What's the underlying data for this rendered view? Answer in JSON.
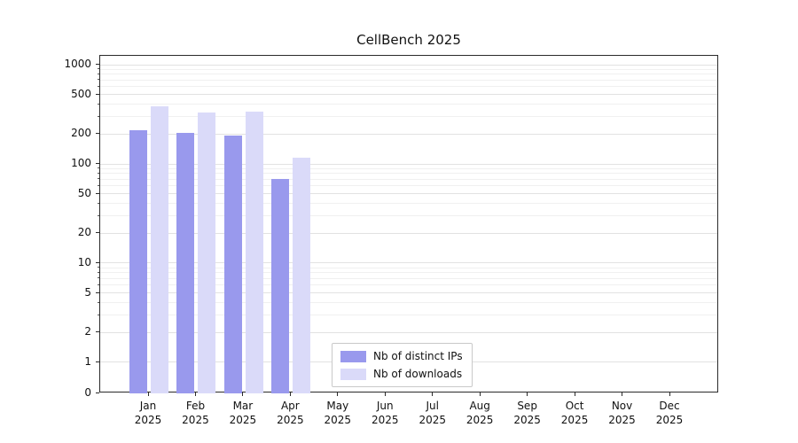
{
  "chart_data": {
    "type": "bar",
    "title": "CellBench 2025",
    "categories": [
      "Jan 2025",
      "Feb 2025",
      "Mar 2025",
      "Apr 2025",
      "May 2025",
      "Jun 2025",
      "Jul 2025",
      "Aug 2025",
      "Sep 2025",
      "Oct 2025",
      "Nov 2025",
      "Dec 2025"
    ],
    "series": [
      {
        "name": "Nb of distinct IPs",
        "color": "#9999ed",
        "values": [
          220,
          205,
          195,
          70,
          0,
          0,
          0,
          0,
          0,
          0,
          0,
          0
        ]
      },
      {
        "name": "Nb of downloads",
        "color": "#dadaf9",
        "values": [
          380,
          330,
          340,
          115,
          0,
          0,
          0,
          0,
          0,
          0,
          0,
          0
        ]
      }
    ],
    "yscale": "symlog",
    "y_ticks": [
      1000,
      500,
      200,
      100,
      50,
      20,
      10,
      5,
      2,
      1,
      0
    ],
    "ylim": [
      0,
      1230
    ],
    "xlabel": "",
    "ylabel": "",
    "grid": "horizontal",
    "legend_position": "lower center"
  }
}
